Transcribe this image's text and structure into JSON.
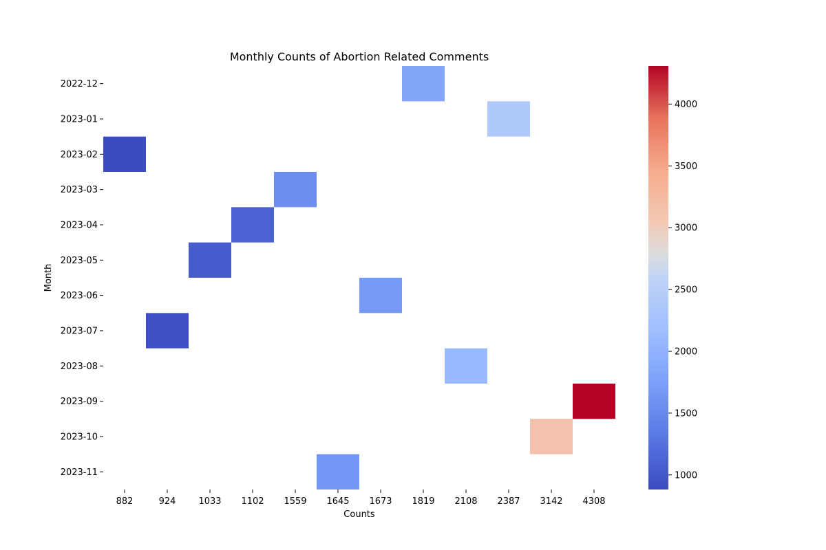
{
  "chart_data": {
    "type": "heatmap",
    "title": "Monthly Counts of Abortion Related Comments",
    "xlabel": "Counts",
    "ylabel": "Month",
    "x_categories": [
      "882",
      "924",
      "1033",
      "1102",
      "1559",
      "1645",
      "1673",
      "1819",
      "2108",
      "2387",
      "3142",
      "4308"
    ],
    "y_categories": [
      "2022-12",
      "2023-01",
      "2023-02",
      "2023-03",
      "2023-04",
      "2023-05",
      "2023-06",
      "2023-07",
      "2023-08",
      "2023-09",
      "2023-10",
      "2023-11"
    ],
    "cells": [
      {
        "month": "2022-12",
        "count": "1819",
        "value": 1819
      },
      {
        "month": "2023-01",
        "count": "2387",
        "value": 2387
      },
      {
        "month": "2023-02",
        "count": "882",
        "value": 882
      },
      {
        "month": "2023-03",
        "count": "1559",
        "value": 1559
      },
      {
        "month": "2023-04",
        "count": "1102",
        "value": 1102
      },
      {
        "month": "2023-05",
        "count": "1033",
        "value": 1033
      },
      {
        "month": "2023-06",
        "count": "1673",
        "value": 1673
      },
      {
        "month": "2023-07",
        "count": "924",
        "value": 924
      },
      {
        "month": "2023-08",
        "count": "2108",
        "value": 2108
      },
      {
        "month": "2023-09",
        "count": "4308",
        "value": 4308
      },
      {
        "month": "2023-10",
        "count": "3142",
        "value": 3142
      },
      {
        "month": "2023-11",
        "count": "1645",
        "value": 1645
      }
    ],
    "colormap": "coolwarm",
    "colorbar": {
      "range": [
        882,
        4308
      ],
      "ticks": [
        1000,
        1500,
        2000,
        2500,
        3000,
        3500,
        4000
      ],
      "tick_labels": [
        "1000",
        "1500",
        "2000",
        "2500",
        "3000",
        "3500",
        "4000"
      ]
    },
    "grid": false
  }
}
